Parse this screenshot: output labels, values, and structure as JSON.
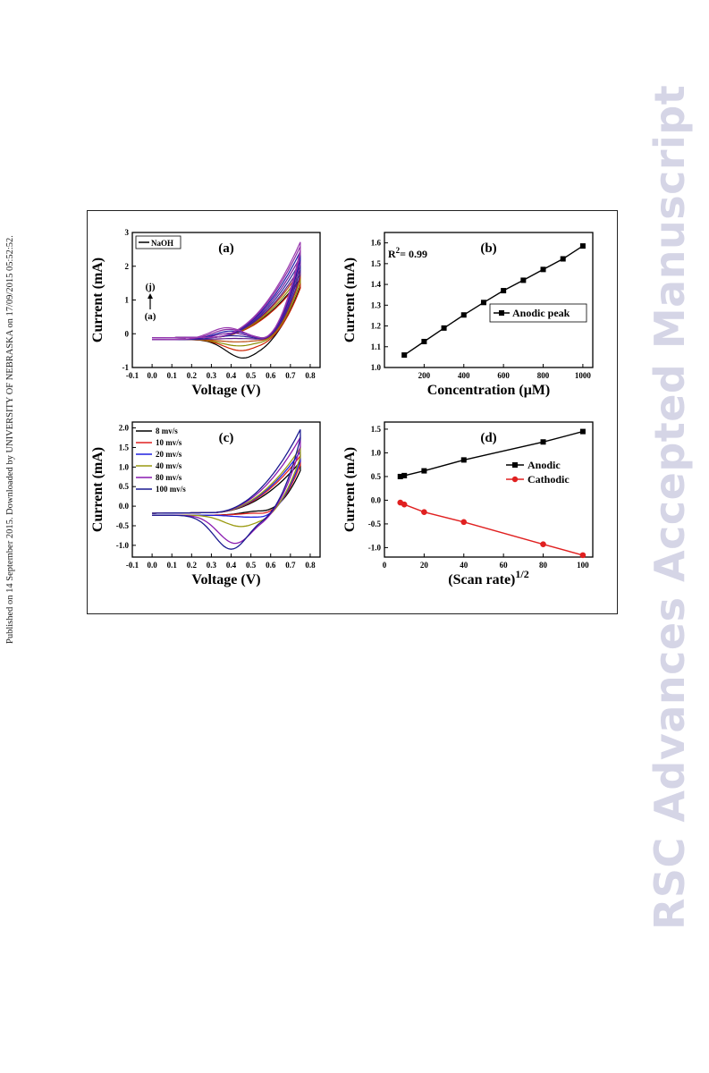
{
  "side_note": "Published on 14 September 2015. Downloaded by UNIVERSITY OF NEBRASKA on 17/09/2015 05:52:52.",
  "watermark": "RSC Advances Accepted Manuscript",
  "chart_data": [
    {
      "id": "a",
      "type": "line",
      "panel_label": "(a)",
      "xlabel": "Voltage (V)",
      "ylabel": "Current (mA)",
      "xlim": [
        -0.1,
        0.85
      ],
      "ylim": [
        -1,
        3
      ],
      "xticks": [
        "-0.1",
        "0.0",
        "0.1",
        "0.2",
        "0.3",
        "0.4",
        "0.5",
        "0.6",
        "0.7",
        "0.8"
      ],
      "yticks": [
        "-1",
        "0",
        "1",
        "2",
        "3"
      ],
      "legend": [
        {
          "name": "NaOH",
          "color": "#000000"
        }
      ],
      "annotation_top": "(j)",
      "annotation_bottom": "(a)",
      "series": [
        {
          "color": "#000000",
          "peak_v": 0.46,
          "peak_i": -0.72,
          "top_i": 1.6
        },
        {
          "color": "#cc2200",
          "peak_v": 0.45,
          "peak_i": -0.5,
          "top_i": 1.55
        },
        {
          "color": "#8a8a00",
          "peak_v": 0.44,
          "peak_i": -0.36,
          "top_i": 1.72
        },
        {
          "color": "#b8440a",
          "peak_v": 0.43,
          "peak_i": -0.24,
          "top_i": 1.85
        },
        {
          "color": "#5a1a8a",
          "peak_v": 0.42,
          "peak_i": -0.14,
          "top_i": 1.95
        },
        {
          "color": "#2a2a9a",
          "peak_v": 0.41,
          "peak_i": -0.06,
          "top_i": 2.1
        },
        {
          "color": "#6a1aa0",
          "peak_v": 0.4,
          "peak_i": 0.02,
          "top_i": 2.25
        },
        {
          "color": "#1a1aa8",
          "peak_v": 0.4,
          "peak_i": 0.08,
          "top_i": 2.4
        },
        {
          "color": "#8a2aa0",
          "peak_v": 0.39,
          "peak_i": 0.13,
          "top_i": 2.55
        },
        {
          "color": "#9a3ab0",
          "peak_v": 0.38,
          "peak_i": 0.18,
          "top_i": 2.68
        }
      ]
    },
    {
      "id": "b",
      "type": "line",
      "panel_label": "(b)",
      "xlabel": "Concentration (μM)",
      "ylabel": "Current (mA)",
      "xlim": [
        0,
        1050
      ],
      "ylim": [
        1.0,
        1.65
      ],
      "xticks": [
        "200",
        "400",
        "600",
        "800",
        "1000"
      ],
      "yticks": [
        "1.0",
        "1.1",
        "1.2",
        "1.3",
        "1.4",
        "1.5",
        "1.6"
      ],
      "r2_label": "R",
      "r2_sup": "2",
      "r2_value": "= 0.99",
      "series": [
        {
          "name": "Anodic peak",
          "color": "#000000",
          "x": [
            100,
            200,
            300,
            400,
            500,
            600,
            700,
            800,
            900,
            1000
          ],
          "y": [
            1.06,
            1.125,
            1.19,
            1.253,
            1.313,
            1.37,
            1.42,
            1.472,
            1.523,
            1.585
          ]
        }
      ]
    },
    {
      "id": "c",
      "type": "line",
      "panel_label": "(c)",
      "xlabel": "Voltage (V)",
      "ylabel": "Current (mA)",
      "xlim": [
        -0.1,
        0.85
      ],
      "ylim": [
        -1.3,
        2.15
      ],
      "xticks": [
        "-0.1",
        "0.0",
        "0.1",
        "0.2",
        "0.3",
        "0.4",
        "0.5",
        "0.6",
        "0.7",
        "0.8"
      ],
      "yticks": [
        "-1.0",
        "-0.5",
        "0.0",
        "0.5",
        "1.0",
        "1.5",
        "2.0"
      ],
      "legend_placement": "top-left",
      "series": [
        {
          "name": "8 mv/s",
          "color": "#000000",
          "peak_v": 0.55,
          "peak_i": -0.12,
          "top_i": 1.1
        },
        {
          "name": "10 mv/s",
          "color": "#e02020",
          "peak_v": 0.53,
          "peak_i": -0.18,
          "top_i": 1.25
        },
        {
          "name": "20 mv/s",
          "color": "#2020e0",
          "peak_v": 0.5,
          "peak_i": -0.28,
          "top_i": 1.35
        },
        {
          "name": "40 mv/s",
          "color": "#9a9a10",
          "peak_v": 0.45,
          "peak_i": -0.52,
          "top_i": 1.45
        },
        {
          "name": "80 mv/s",
          "color": "#8a1ab0",
          "peak_v": 0.42,
          "peak_i": -0.95,
          "top_i": 1.72
        },
        {
          "name": "100 mv/s",
          "color": "#1a1a90",
          "peak_v": 0.4,
          "peak_i": -1.1,
          "top_i": 1.92
        }
      ]
    },
    {
      "id": "d",
      "type": "line",
      "panel_label": "(d)",
      "xlabel": "(Scan rate)",
      "xlabel_sup": "1/2",
      "ylabel": "Current (mA)",
      "xlim": [
        0,
        105
      ],
      "ylim": [
        -1.2,
        1.65
      ],
      "xticks": [
        "0",
        "20",
        "40",
        "60",
        "80",
        "100"
      ],
      "yticks": [
        "-1.0",
        "-0.5",
        "0.0",
        "0.5",
        "1.0",
        "1.5"
      ],
      "legend_placement": "right",
      "series": [
        {
          "name": "Anodic",
          "color": "#000000",
          "marker": "square",
          "x": [
            8,
            10,
            20,
            40,
            80,
            100
          ],
          "y": [
            0.5,
            0.52,
            0.62,
            0.85,
            1.23,
            1.45
          ]
        },
        {
          "name": "Cathodic",
          "color": "#e02020",
          "marker": "circle",
          "x": [
            8,
            10,
            20,
            40,
            80,
            100
          ],
          "y": [
            -0.05,
            -0.09,
            -0.25,
            -0.46,
            -0.93,
            -1.16
          ]
        }
      ]
    }
  ]
}
